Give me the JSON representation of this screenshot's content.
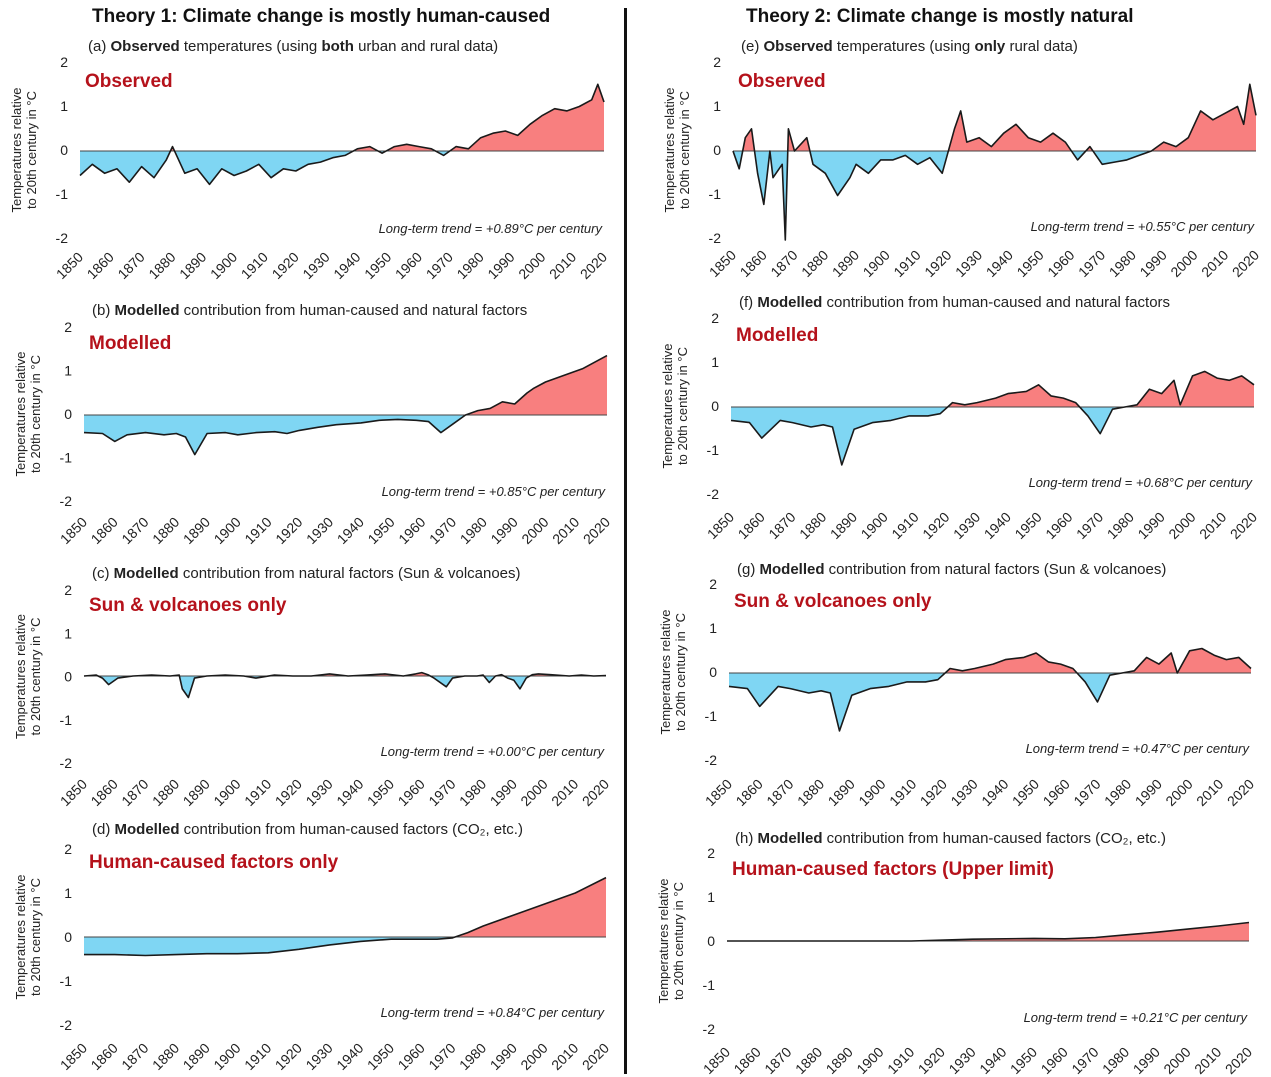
{
  "titles": {
    "left": "Theory 1: Climate change is mostly human-caused",
    "right": "Theory 2: Climate change is mostly natural"
  },
  "colors": {
    "positive_fill": "#f87f7f",
    "negative_fill": "#7fd6f3",
    "line": "#1a1a1a",
    "label_red": "#b5121b"
  },
  "common": {
    "ylabel_line1": "Temperatures relative",
    "ylabel_line2": "to 20th century in °C",
    "yticks": [
      "2",
      "1",
      "0",
      "-1",
      "-2"
    ],
    "xticks": [
      "1850",
      "1860",
      "1870",
      "1880",
      "1890",
      "1900",
      "1910",
      "1920",
      "1930",
      "1940",
      "1950",
      "1960",
      "1970",
      "1980",
      "1990",
      "2000",
      "2010",
      "2020"
    ],
    "trend_prefix": "Long-term trend = "
  },
  "chart_data": [
    {
      "type": "area",
      "panel": "(a)",
      "desc_pre": "",
      "desc_bold": "Observed",
      "desc_mid": " temperatures (using ",
      "desc_bold2": "both",
      "desc_post": " urban and rural data)",
      "label": "Observed",
      "trend": "+0.89°C per century",
      "ylim": [
        -2,
        2
      ],
      "xlim": [
        1850,
        2020
      ],
      "x": [
        1850,
        1854,
        1858,
        1862,
        1866,
        1870,
        1874,
        1878,
        1880,
        1884,
        1888,
        1892,
        1896,
        1900,
        1904,
        1908,
        1912,
        1916,
        1920,
        1924,
        1928,
        1932,
        1936,
        1940,
        1944,
        1948,
        1952,
        1956,
        1960,
        1964,
        1968,
        1972,
        1976,
        1980,
        1984,
        1988,
        1992,
        1996,
        2000,
        2004,
        2008,
        2012,
        2016,
        2018,
        2020
      ],
      "y": [
        -0.55,
        -0.3,
        -0.5,
        -0.4,
        -0.7,
        -0.35,
        -0.6,
        -0.2,
        0.1,
        -0.5,
        -0.4,
        -0.75,
        -0.4,
        -0.55,
        -0.45,
        -0.3,
        -0.6,
        -0.4,
        -0.45,
        -0.3,
        -0.25,
        -0.15,
        -0.1,
        0.05,
        0.1,
        -0.05,
        0.1,
        0.15,
        0.1,
        0.05,
        -0.1,
        0.1,
        0.05,
        0.3,
        0.4,
        0.45,
        0.35,
        0.6,
        0.8,
        0.95,
        0.9,
        1.0,
        1.15,
        1.5,
        1.1
      ]
    },
    {
      "type": "area",
      "panel": "(b)",
      "desc_pre": "",
      "desc_bold": "Modelled",
      "desc_mid": " contribution from human-caused and natural factors",
      "desc_bold2": "",
      "desc_post": "",
      "label": "Modelled",
      "trend": "+0.85°C per century",
      "ylim": [
        -2,
        2
      ],
      "xlim": [
        1850,
        2020
      ],
      "x": [
        1850,
        1856,
        1860,
        1864,
        1870,
        1876,
        1880,
        1883,
        1886,
        1890,
        1896,
        1900,
        1906,
        1912,
        1916,
        1920,
        1926,
        1932,
        1936,
        1940,
        1946,
        1952,
        1958,
        1962,
        1966,
        1970,
        1974,
        1978,
        1982,
        1986,
        1990,
        1994,
        1996,
        2000,
        2006,
        2012,
        2016,
        2020
      ],
      "y": [
        -0.4,
        -0.42,
        -0.6,
        -0.45,
        -0.4,
        -0.45,
        -0.42,
        -0.5,
        -0.9,
        -0.42,
        -0.4,
        -0.45,
        -0.4,
        -0.38,
        -0.42,
        -0.35,
        -0.28,
        -0.22,
        -0.2,
        -0.18,
        -0.12,
        -0.1,
        -0.12,
        -0.15,
        -0.4,
        -0.2,
        0.0,
        0.1,
        0.15,
        0.3,
        0.25,
        0.5,
        0.6,
        0.75,
        0.9,
        1.05,
        1.2,
        1.35
      ]
    },
    {
      "type": "area",
      "panel": "(c)",
      "desc_pre": "",
      "desc_bold": "Modelled",
      "desc_mid": " contribution from natural factors (Sun & volcanoes)",
      "desc_bold2": "",
      "desc_post": "",
      "label": "Sun & volcanoes only",
      "trend": "+0.00°C per century",
      "ylim": [
        -2,
        2
      ],
      "xlim": [
        1850,
        2020
      ],
      "x": [
        1850,
        1854,
        1856,
        1858,
        1861,
        1866,
        1872,
        1878,
        1881,
        1882,
        1884,
        1886,
        1890,
        1896,
        1902,
        1906,
        1912,
        1918,
        1924,
        1930,
        1936,
        1942,
        1948,
        1954,
        1958,
        1960,
        1962,
        1964,
        1968,
        1970,
        1974,
        1978,
        1980,
        1982,
        1984,
        1986,
        1988,
        1990,
        1992,
        1994,
        1996,
        1998,
        2002,
        2008,
        2012,
        2016,
        2020
      ],
      "y": [
        0.0,
        0.02,
        -0.05,
        -0.2,
        -0.05,
        0.0,
        0.02,
        0.0,
        0.02,
        -0.3,
        -0.5,
        -0.05,
        0.0,
        0.02,
        0.0,
        -0.05,
        0.02,
        0.0,
        0.0,
        0.05,
        0.0,
        0.02,
        0.05,
        0.0,
        0.05,
        0.08,
        0.03,
        -0.05,
        -0.25,
        -0.05,
        0.0,
        0.0,
        0.02,
        -0.15,
        0.0,
        0.03,
        -0.05,
        -0.1,
        -0.3,
        -0.05,
        0.03,
        0.05,
        0.03,
        0.0,
        0.02,
        0.0,
        0.01
      ]
    },
    {
      "type": "area",
      "panel": "(d)",
      "desc_pre": "",
      "desc_bold": "Modelled",
      "desc_mid": " contribution from human-caused factors (CO₂, etc.)",
      "desc_bold2": "",
      "desc_post": "",
      "label": "Human-caused factors only",
      "trend": "+0.84°C per century",
      "ylim": [
        -2,
        2
      ],
      "xlim": [
        1850,
        2020
      ],
      "x": [
        1850,
        1860,
        1870,
        1880,
        1890,
        1900,
        1910,
        1920,
        1930,
        1940,
        1950,
        1960,
        1965,
        1970,
        1975,
        1980,
        1990,
        2000,
        2010,
        2020
      ],
      "y": [
        -0.4,
        -0.4,
        -0.42,
        -0.4,
        -0.38,
        -0.38,
        -0.36,
        -0.28,
        -0.18,
        -0.1,
        -0.05,
        -0.05,
        -0.05,
        -0.02,
        0.1,
        0.25,
        0.5,
        0.75,
        1.0,
        1.35
      ]
    },
    {
      "type": "area",
      "panel": "(e)",
      "desc_pre": "",
      "desc_bold": "Observed",
      "desc_mid": " temperatures (using ",
      "desc_bold2": "only",
      "desc_post": " rural data)",
      "label": "Observed",
      "trend": "+0.55°C per century",
      "ylim": [
        -2,
        2
      ],
      "xlim": [
        1850,
        2020
      ],
      "x": [
        1850,
        1852,
        1854,
        1856,
        1858,
        1860,
        1862,
        1863,
        1866,
        1867,
        1868,
        1870,
        1874,
        1876,
        1880,
        1884,
        1888,
        1890,
        1894,
        1898,
        1902,
        1906,
        1910,
        1914,
        1918,
        1922,
        1924,
        1926,
        1930,
        1934,
        1938,
        1942,
        1946,
        1950,
        1954,
        1958,
        1962,
        1966,
        1970,
        1974,
        1978,
        1982,
        1986,
        1990,
        1994,
        1998,
        2002,
        2006,
        2010,
        2014,
        2016,
        2018,
        2020
      ],
      "y": [
        0.0,
        -0.4,
        0.3,
        0.5,
        -0.5,
        -1.2,
        0.0,
        -0.6,
        -0.3,
        -2.0,
        0.5,
        0.0,
        0.3,
        -0.3,
        -0.5,
        -1.0,
        -0.6,
        -0.3,
        -0.5,
        -0.2,
        -0.2,
        -0.1,
        -0.3,
        -0.15,
        -0.5,
        0.5,
        0.9,
        0.2,
        0.3,
        0.1,
        0.4,
        0.6,
        0.3,
        0.2,
        0.4,
        0.2,
        -0.2,
        0.1,
        -0.3,
        -0.25,
        -0.2,
        -0.1,
        0.0,
        0.2,
        0.1,
        0.3,
        0.9,
        0.7,
        0.85,
        1.0,
        0.6,
        1.5,
        0.8
      ]
    },
    {
      "type": "area",
      "panel": "(f)",
      "desc_pre": "",
      "desc_bold": "Modelled",
      "desc_mid": " contribution from human-caused and natural factors",
      "desc_bold2": "",
      "desc_post": "",
      "label": "Modelled",
      "trend": "+0.68°C per century",
      "ylim": [
        -2,
        2
      ],
      "xlim": [
        1850,
        2020
      ],
      "x": [
        1850,
        1856,
        1860,
        1866,
        1870,
        1876,
        1880,
        1883,
        1886,
        1890,
        1896,
        1902,
        1908,
        1914,
        1918,
        1922,
        1926,
        1930,
        1936,
        1940,
        1946,
        1950,
        1954,
        1958,
        1962,
        1966,
        1970,
        1974,
        1978,
        1982,
        1986,
        1990,
        1994,
        1996,
        2000,
        2004,
        2008,
        2012,
        2016,
        2020
      ],
      "y": [
        -0.3,
        -0.35,
        -0.7,
        -0.3,
        -0.35,
        -0.45,
        -0.4,
        -0.45,
        -1.3,
        -0.5,
        -0.35,
        -0.3,
        -0.2,
        -0.2,
        -0.15,
        0.1,
        0.05,
        0.1,
        0.2,
        0.3,
        0.35,
        0.5,
        0.25,
        0.2,
        0.1,
        -0.2,
        -0.6,
        -0.05,
        0.0,
        0.05,
        0.4,
        0.3,
        0.6,
        0.05,
        0.7,
        0.8,
        0.65,
        0.6,
        0.7,
        0.5
      ]
    },
    {
      "type": "area",
      "panel": "(g)",
      "desc_pre": "",
      "desc_bold": "Modelled",
      "desc_mid": " contribution from natural factors (Sun & volcanoes)",
      "desc_bold2": "",
      "desc_post": "",
      "label": "Sun & volcanoes only",
      "trend": "+0.47°C per century",
      "ylim": [
        -2,
        2
      ],
      "xlim": [
        1850,
        2020
      ],
      "x": [
        1850,
        1856,
        1860,
        1866,
        1870,
        1876,
        1880,
        1883,
        1886,
        1890,
        1896,
        1902,
        1908,
        1914,
        1918,
        1922,
        1926,
        1930,
        1936,
        1940,
        1946,
        1950,
        1954,
        1958,
        1962,
        1966,
        1970,
        1974,
        1978,
        1982,
        1986,
        1990,
        1994,
        1996,
        2000,
        2004,
        2008,
        2012,
        2016,
        2020
      ],
      "y": [
        -0.3,
        -0.35,
        -0.75,
        -0.3,
        -0.35,
        -0.45,
        -0.4,
        -0.45,
        -1.3,
        -0.5,
        -0.35,
        -0.3,
        -0.2,
        -0.2,
        -0.15,
        0.1,
        0.05,
        0.1,
        0.2,
        0.3,
        0.35,
        0.45,
        0.25,
        0.2,
        0.1,
        -0.2,
        -0.65,
        -0.05,
        0.0,
        0.05,
        0.35,
        0.2,
        0.45,
        0.0,
        0.5,
        0.55,
        0.4,
        0.3,
        0.35,
        0.1
      ]
    },
    {
      "type": "area",
      "panel": "(h)",
      "desc_pre": "",
      "desc_bold": "Modelled",
      "desc_mid": " contribution from human-caused factors (CO₂, etc.)",
      "desc_bold2": "",
      "desc_post": "",
      "label": "Human-caused factors (Upper limit)",
      "trend": "+0.21°C per century",
      "ylim": [
        -2,
        2
      ],
      "xlim": [
        1850,
        2020
      ],
      "x": [
        1850,
        1870,
        1890,
        1910,
        1930,
        1950,
        1960,
        1970,
        1980,
        1990,
        2000,
        2010,
        2020
      ],
      "y": [
        0.0,
        0.0,
        0.0,
        0.0,
        0.04,
        0.06,
        0.05,
        0.08,
        0.14,
        0.2,
        0.27,
        0.34,
        0.42
      ]
    }
  ]
}
